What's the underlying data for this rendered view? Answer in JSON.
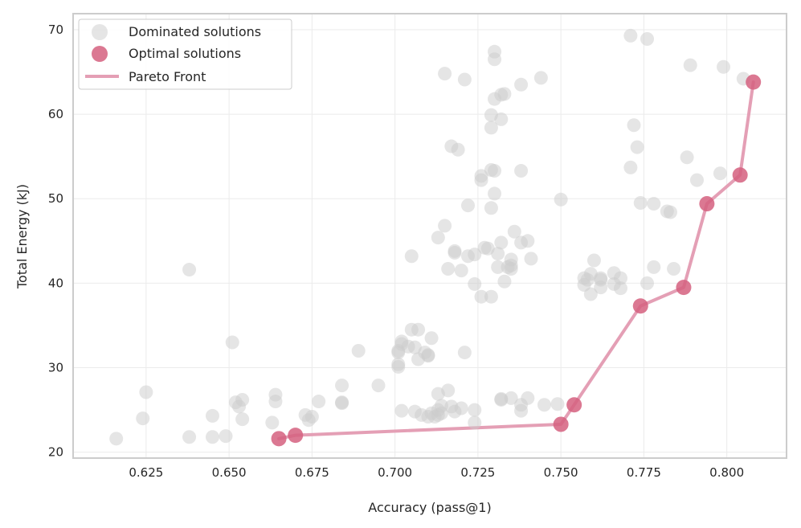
{
  "chart_data": {
    "type": "scatter",
    "xlabel": "Accuracy (pass@1)",
    "ylabel": "Total Energy (kJ)",
    "xlim": [
      0.603,
      0.818
    ],
    "ylim": [
      19.3,
      71.9
    ],
    "xticks": [
      0.625,
      0.65,
      0.675,
      0.7,
      0.725,
      0.75,
      0.775,
      0.8
    ],
    "xtick_labels": [
      "0.625",
      "0.650",
      "0.675",
      "0.700",
      "0.725",
      "0.750",
      "0.775",
      "0.800"
    ],
    "yticks": [
      20,
      30,
      40,
      50,
      60,
      70
    ],
    "ytick_labels": [
      "20",
      "30",
      "40",
      "50",
      "60",
      "70"
    ],
    "grid": true,
    "legend": {
      "placement": "top-left",
      "entries": [
        "Dominated solutions",
        "Optimal solutions",
        "Pareto Front"
      ]
    },
    "colors": {
      "dominated": "#cccccc",
      "optimal": "#d5607f",
      "front": "#e49fb5",
      "frame": "#cccccc",
      "grid": "#ebebeb"
    },
    "series": [
      {
        "name": "Dominated solutions",
        "kind": "scatter",
        "points": [
          [
            0.616,
            21.6
          ],
          [
            0.624,
            24.0
          ],
          [
            0.625,
            27.1
          ],
          [
            0.638,
            41.6
          ],
          [
            0.638,
            21.8
          ],
          [
            0.645,
            21.8
          ],
          [
            0.645,
            24.3
          ],
          [
            0.649,
            21.9
          ],
          [
            0.651,
            33.0
          ],
          [
            0.652,
            25.9
          ],
          [
            0.653,
            25.4
          ],
          [
            0.654,
            26.2
          ],
          [
            0.654,
            23.9
          ],
          [
            0.663,
            23.5
          ],
          [
            0.664,
            26.0
          ],
          [
            0.664,
            26.8
          ],
          [
            0.673,
            24.4
          ],
          [
            0.674,
            23.8
          ],
          [
            0.675,
            24.2
          ],
          [
            0.677,
            26.0
          ],
          [
            0.684,
            27.9
          ],
          [
            0.684,
            25.9
          ],
          [
            0.684,
            25.8
          ],
          [
            0.689,
            32.0
          ],
          [
            0.695,
            27.9
          ],
          [
            0.701,
            32.0
          ],
          [
            0.701,
            31.8
          ],
          [
            0.701,
            30.4
          ],
          [
            0.701,
            30.1
          ],
          [
            0.702,
            33.1
          ],
          [
            0.702,
            32.8
          ],
          [
            0.702,
            24.9
          ],
          [
            0.704,
            32.5
          ],
          [
            0.705,
            34.5
          ],
          [
            0.705,
            43.2
          ],
          [
            0.706,
            24.8
          ],
          [
            0.706,
            32.4
          ],
          [
            0.707,
            34.5
          ],
          [
            0.707,
            31.0
          ],
          [
            0.708,
            24.4
          ],
          [
            0.709,
            31.8
          ],
          [
            0.71,
            31.4
          ],
          [
            0.71,
            31.5
          ],
          [
            0.71,
            24.2
          ],
          [
            0.711,
            33.5
          ],
          [
            0.711,
            24.6
          ],
          [
            0.712,
            24.2
          ],
          [
            0.713,
            45.4
          ],
          [
            0.713,
            24.4
          ],
          [
            0.713,
            25.0
          ],
          [
            0.713,
            26.9
          ],
          [
            0.714,
            24.6
          ],
          [
            0.714,
            25.5
          ],
          [
            0.715,
            64.8
          ],
          [
            0.715,
            46.8
          ],
          [
            0.716,
            41.7
          ],
          [
            0.716,
            27.3
          ],
          [
            0.717,
            25.4
          ],
          [
            0.717,
            56.2
          ],
          [
            0.718,
            43.8
          ],
          [
            0.718,
            43.6
          ],
          [
            0.718,
            24.8
          ],
          [
            0.719,
            55.8
          ],
          [
            0.72,
            41.5
          ],
          [
            0.72,
            25.2
          ],
          [
            0.721,
            64.1
          ],
          [
            0.721,
            31.8
          ],
          [
            0.722,
            49.2
          ],
          [
            0.722,
            43.2
          ],
          [
            0.724,
            43.4
          ],
          [
            0.724,
            39.9
          ],
          [
            0.724,
            25.0
          ],
          [
            0.724,
            23.5
          ],
          [
            0.726,
            52.2
          ],
          [
            0.726,
            52.7
          ],
          [
            0.726,
            38.4
          ],
          [
            0.727,
            44.2
          ],
          [
            0.728,
            44.1
          ],
          [
            0.729,
            59.9
          ],
          [
            0.729,
            58.4
          ],
          [
            0.729,
            53.4
          ],
          [
            0.729,
            48.9
          ],
          [
            0.729,
            38.4
          ],
          [
            0.73,
            67.4
          ],
          [
            0.73,
            66.5
          ],
          [
            0.73,
            61.8
          ],
          [
            0.73,
            53.3
          ],
          [
            0.73,
            50.6
          ],
          [
            0.731,
            43.5
          ],
          [
            0.731,
            41.9
          ],
          [
            0.732,
            62.3
          ],
          [
            0.732,
            59.4
          ],
          [
            0.732,
            44.8
          ],
          [
            0.732,
            26.2
          ],
          [
            0.732,
            26.3
          ],
          [
            0.733,
            62.4
          ],
          [
            0.733,
            40.2
          ],
          [
            0.734,
            41.9
          ],
          [
            0.735,
            42.8
          ],
          [
            0.735,
            42.1
          ],
          [
            0.735,
            41.7
          ],
          [
            0.735,
            26.4
          ],
          [
            0.736,
            46.1
          ],
          [
            0.738,
            63.5
          ],
          [
            0.738,
            53.3
          ],
          [
            0.738,
            44.8
          ],
          [
            0.738,
            25.6
          ],
          [
            0.738,
            24.9
          ],
          [
            0.74,
            45.0
          ],
          [
            0.74,
            26.4
          ],
          [
            0.741,
            42.9
          ],
          [
            0.744,
            64.3
          ],
          [
            0.745,
            25.6
          ],
          [
            0.749,
            25.7
          ],
          [
            0.75,
            49.9
          ],
          [
            0.757,
            40.6
          ],
          [
            0.757,
            39.8
          ],
          [
            0.758,
            40.4
          ],
          [
            0.759,
            41.1
          ],
          [
            0.759,
            38.7
          ],
          [
            0.76,
            42.7
          ],
          [
            0.762,
            40.4
          ],
          [
            0.762,
            39.5
          ],
          [
            0.762,
            40.6
          ],
          [
            0.766,
            41.2
          ],
          [
            0.766,
            39.9
          ],
          [
            0.768,
            39.4
          ],
          [
            0.768,
            40.6
          ],
          [
            0.771,
            69.3
          ],
          [
            0.771,
            53.7
          ],
          [
            0.772,
            58.7
          ],
          [
            0.773,
            56.1
          ],
          [
            0.774,
            49.5
          ],
          [
            0.776,
            68.9
          ],
          [
            0.776,
            40.0
          ],
          [
            0.778,
            49.4
          ],
          [
            0.778,
            41.9
          ],
          [
            0.782,
            48.5
          ],
          [
            0.783,
            48.4
          ],
          [
            0.784,
            41.7
          ],
          [
            0.788,
            54.9
          ],
          [
            0.789,
            65.8
          ],
          [
            0.791,
            52.2
          ],
          [
            0.798,
            53.0
          ],
          [
            0.799,
            65.6
          ],
          [
            0.805,
            64.2
          ]
        ]
      },
      {
        "name": "Optimal solutions",
        "kind": "scatter",
        "points": [
          [
            0.665,
            21.6
          ],
          [
            0.67,
            22.0
          ],
          [
            0.75,
            23.3
          ],
          [
            0.754,
            25.6
          ],
          [
            0.774,
            37.3
          ],
          [
            0.787,
            39.5
          ],
          [
            0.794,
            49.4
          ],
          [
            0.804,
            52.8
          ],
          [
            0.808,
            63.8
          ]
        ]
      },
      {
        "name": "Pareto Front",
        "kind": "line",
        "points": [
          [
            0.665,
            21.6
          ],
          [
            0.67,
            22.0
          ],
          [
            0.75,
            23.3
          ],
          [
            0.754,
            25.6
          ],
          [
            0.774,
            37.3
          ],
          [
            0.787,
            39.5
          ],
          [
            0.794,
            49.4
          ],
          [
            0.804,
            52.8
          ],
          [
            0.808,
            63.8
          ]
        ]
      }
    ]
  }
}
